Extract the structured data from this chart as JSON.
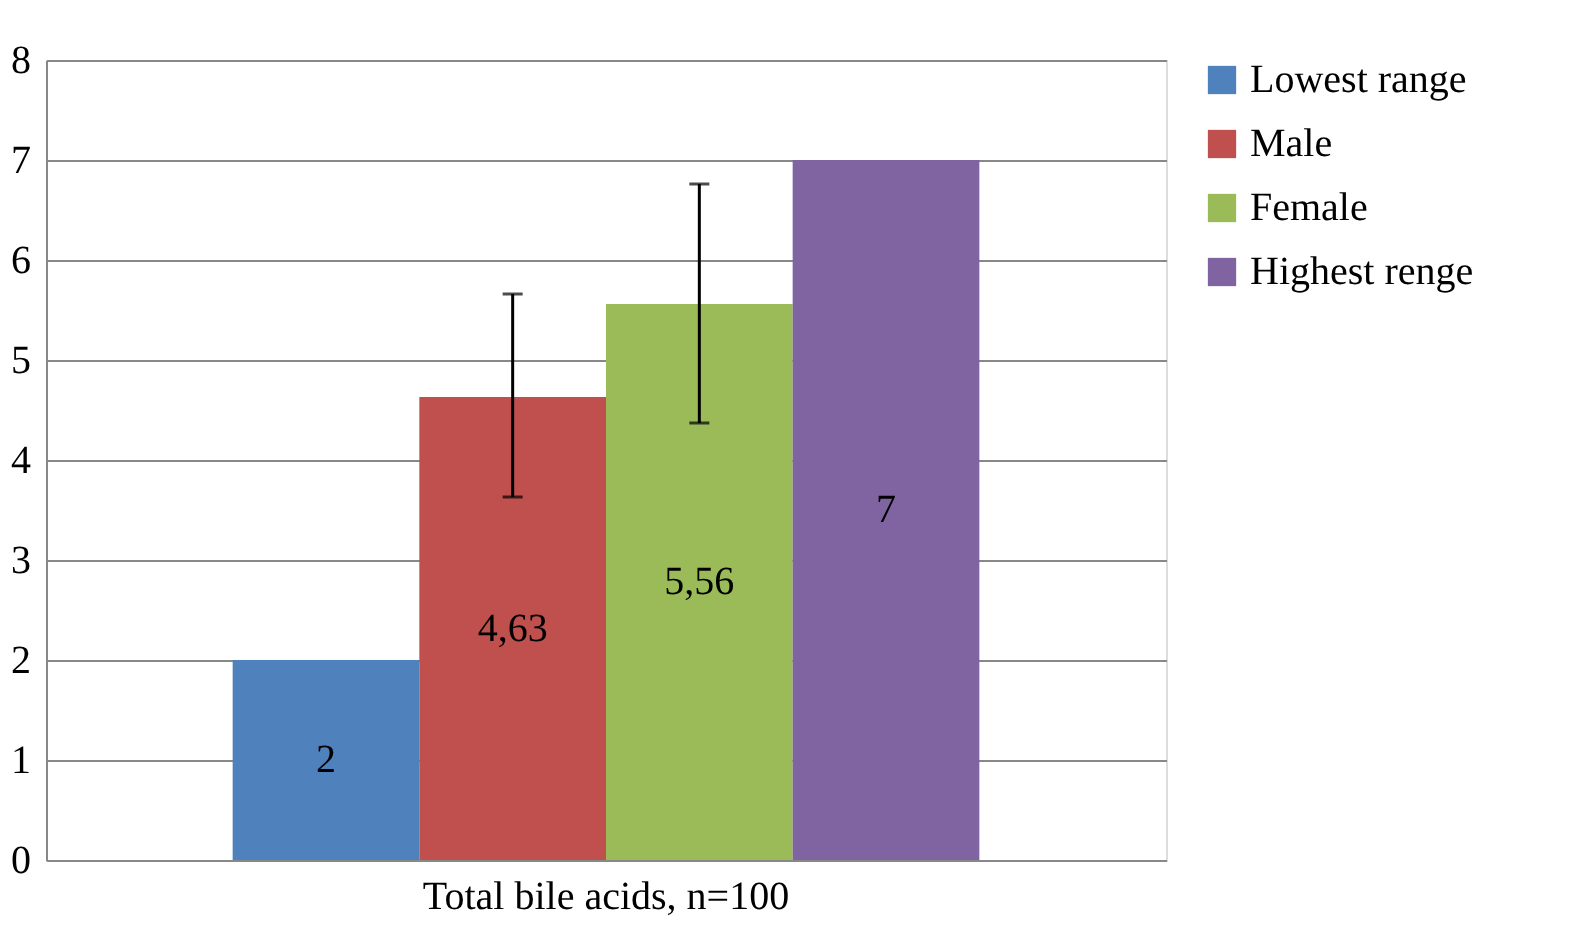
{
  "chart_data": {
    "type": "bar",
    "categories": [
      "Total bile acids, n=100"
    ],
    "series": [
      {
        "name": "Lowest range",
        "color": "#4f81bd",
        "values": [
          2
        ],
        "value_labels": [
          "2"
        ]
      },
      {
        "name": "Male",
        "color": "#c0504d",
        "values": [
          4.63
        ],
        "value_labels": [
          "4,63"
        ],
        "errors": [
          [
            3.63,
            5.66
          ]
        ]
      },
      {
        "name": "Female",
        "color": "#9bbb59",
        "values": [
          5.56
        ],
        "value_labels": [
          "5,56"
        ],
        "errors": [
          [
            4.37,
            6.76
          ]
        ]
      },
      {
        "name": "Highest renge",
        "color": "#8064a2",
        "values": [
          7
        ],
        "value_labels": [
          "7"
        ]
      }
    ],
    "ylim": [
      0,
      8
    ],
    "yticks": [
      0,
      1,
      2,
      3,
      4,
      5,
      6,
      7,
      8
    ],
    "grid": "y",
    "legend": "right"
  }
}
